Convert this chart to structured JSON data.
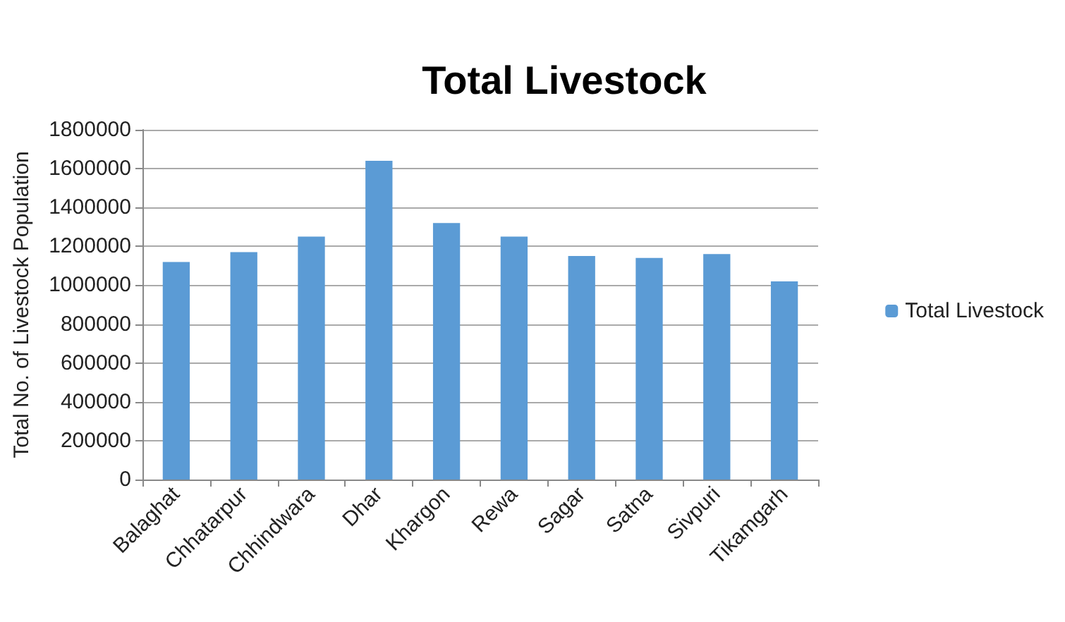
{
  "chart_data": {
    "type": "bar",
    "title": "Total Livestock",
    "ylabel": "Total No. of Livestock Population",
    "categories": [
      "Balaghat",
      "Chhatarpur",
      "Chhindwara",
      "Dhar",
      "Khargon",
      "Rewa",
      "Sagar",
      "Satna",
      "Sivpuri",
      "Tikamgarh"
    ],
    "series": [
      {
        "name": "Total Livestock",
        "color": "#5b9bd5",
        "values": [
          1120000,
          1170000,
          1250000,
          1640000,
          1320000,
          1250000,
          1150000,
          1140000,
          1160000,
          1020000
        ]
      }
    ],
    "ylim": [
      0,
      1800000
    ],
    "yticks": [
      0,
      200000,
      400000,
      600000,
      800000,
      1000000,
      1200000,
      1400000,
      1600000,
      1800000
    ],
    "grid": "y",
    "legend": "right"
  }
}
